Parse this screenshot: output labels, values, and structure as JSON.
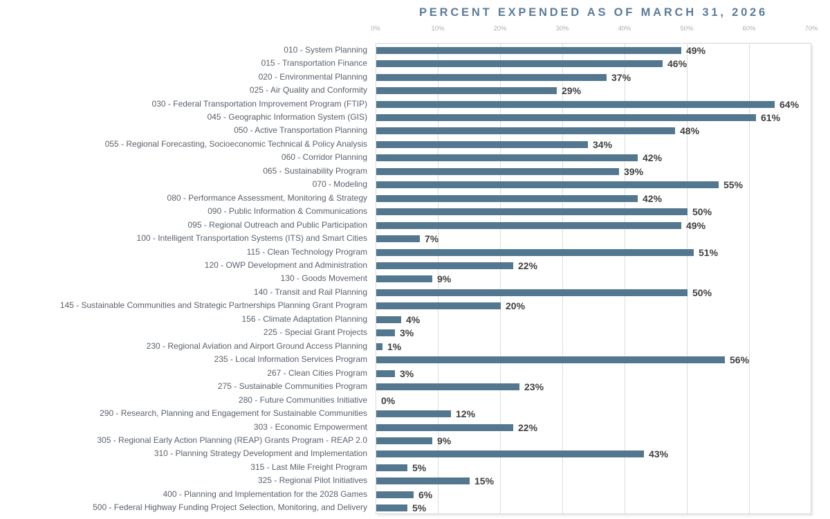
{
  "chart_data": {
    "type": "bar",
    "orientation": "horizontal",
    "title": "PERCENT EXPENDED AS OF MARCH 31, 2026",
    "categories": [
      "010 - System Planning",
      "015 - Transportation Finance",
      "020 - Environmental Planning",
      "025 - Air Quality and Conformity",
      "030 - Federal Transportation Improvement Program (FTIP)",
      "045 - Geographic Information System (GIS)",
      "050 - Active Transportation Planning",
      "055 - Regional Forecasting, Socioeconomic Technical & Policy Analysis",
      "060 - Corridor Planning",
      "065 - Sustainability Program",
      "070 - Modeling",
      "080 - Performance Assessment, Monitoring & Strategy",
      "090 - Public Information & Communications",
      "095 - Regional Outreach and Public Participation",
      "100 - Intelligent Transportation Systems (ITS) and Smart Cities",
      "115 - Clean Technology Program",
      "120 - OWP Development and Administration",
      "130 - Goods Movement",
      "140 - Transit and Rail Planning",
      "145 - Sustainable Communities and Strategic Partnerships Planning Grant Program",
      "156 - Climate Adaptation Planning",
      "225 - Special Grant Projects",
      "230 - Regional Aviation and Airport Ground Access Planning",
      "235 - Local Information Services Program",
      "267 - Clean Cities Program",
      "275 - Sustainable Communities Program",
      "280 - Future Communities Initiative",
      "290 - Research, Planning and Engagement for Sustainable Communities",
      "303 - Economic Empowerment",
      "305 - Regional Early Action Planning (REAP) Grants Program - REAP 2.0",
      "310 - Planning Strategy Development and Implementation",
      "315 - Last Mile Freight Program",
      "325 - Regional Pilot Initiatives",
      "400 - Planning and Implementation for the 2028 Games",
      "500 - Federal Highway Funding Project Selection, Monitoring, and Delivery"
    ],
    "values": [
      49,
      46,
      37,
      29,
      64,
      61,
      48,
      34,
      42,
      39,
      55,
      42,
      50,
      49,
      7,
      51,
      22,
      9,
      50,
      20,
      4,
      3,
      1,
      56,
      3,
      23,
      0,
      12,
      22,
      9,
      43,
      5,
      15,
      6,
      5
    ],
    "value_labels": [
      "49%",
      "46%",
      "37%",
      "29%",
      "64%",
      "61%",
      "48%",
      "34%",
      "42%",
      "39%",
      "55%",
      "42%",
      "50%",
      "49%",
      "7%",
      "51%",
      "22%",
      "9%",
      "50%",
      "20%",
      "4%",
      "3%",
      "1%",
      "56%",
      "3%",
      "23%",
      "0%",
      "12%",
      "22%",
      "9%",
      "43%",
      "5%",
      "15%",
      "6%",
      "5%"
    ],
    "x_ticks": [
      "0%",
      "10%",
      "20%",
      "30%",
      "40%",
      "50%",
      "60%",
      "70%"
    ],
    "xlim": [
      0,
      70
    ],
    "grid": true,
    "legend": "none",
    "colors": {
      "bar": "#53778E",
      "title": "#5A7C99",
      "category_label": "#5A616B",
      "value_label": "#3F3F3F",
      "tick_label": "#ABAEB3",
      "gridline": "#DCDCDC",
      "background": "#FFFFFF"
    }
  }
}
